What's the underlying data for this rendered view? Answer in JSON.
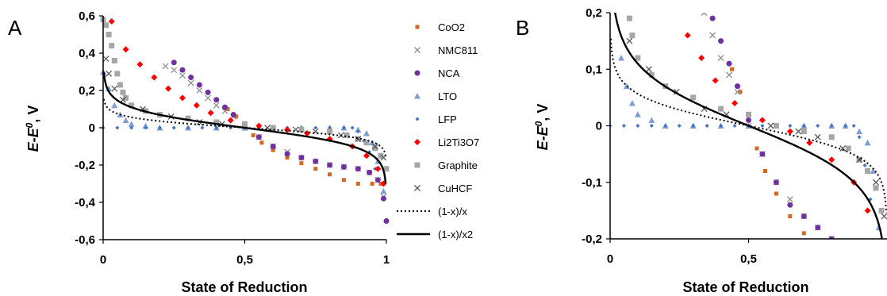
{
  "chart_data": [
    {
      "panel": "A",
      "type": "scatter",
      "xlabel": "State of Reduction",
      "ylabel": "E-E0, V",
      "xlim": [
        0,
        1
      ],
      "ylim": [
        -0.6,
        0.6
      ],
      "x_ticks": [
        "0",
        "0,5",
        "1"
      ],
      "y_ticks": [
        "0,6",
        "0,4",
        "0,2",
        "0",
        "-0,2",
        "-0,4",
        "-0,6"
      ],
      "grid": false,
      "legend_position": "right",
      "series": [
        {
          "name": "CoO2",
          "color": "#D2691E",
          "marker": "square-small",
          "x": [
            0.44,
            0.47,
            0.5,
            0.53,
            0.56,
            0.6,
            0.65,
            0.7,
            0.75,
            0.8,
            0.85,
            0.9,
            0.95,
            0.98
          ],
          "y": [
            0.1,
            0.06,
            0.01,
            -0.04,
            -0.08,
            -0.12,
            -0.16,
            -0.19,
            -0.22,
            -0.25,
            -0.28,
            -0.3,
            -0.3,
            -0.3
          ]
        },
        {
          "name": "NMC811",
          "color": "#909090",
          "marker": "x",
          "x": [
            0.22,
            0.25,
            0.28,
            0.31,
            0.34,
            0.37,
            0.4,
            0.43,
            0.46,
            0.5,
            0.55,
            0.6,
            0.65,
            0.7,
            0.75,
            0.8,
            0.85,
            0.9,
            0.94,
            0.97,
            0.99
          ],
          "y": [
            0.33,
            0.31,
            0.28,
            0.24,
            0.2,
            0.16,
            0.12,
            0.09,
            0.06,
            0.0,
            -0.05,
            -0.1,
            -0.13,
            -0.16,
            -0.18,
            -0.2,
            -0.21,
            -0.22,
            -0.24,
            -0.28,
            -0.37
          ]
        },
        {
          "name": "NCA",
          "color": "#7030A0",
          "marker": "circle",
          "x": [
            0.25,
            0.28,
            0.31,
            0.34,
            0.37,
            0.4,
            0.43,
            0.46,
            0.5,
            0.55,
            0.6,
            0.65,
            0.7,
            0.75,
            0.8,
            0.85,
            0.9,
            0.94,
            0.97,
            0.99,
            1.0
          ],
          "y": [
            0.35,
            0.31,
            0.27,
            0.23,
            0.19,
            0.15,
            0.11,
            0.07,
            0.01,
            -0.05,
            -0.1,
            -0.14,
            -0.16,
            -0.18,
            -0.2,
            -0.21,
            -0.22,
            -0.24,
            -0.28,
            -0.38,
            -0.5
          ]
        },
        {
          "name": "LTO",
          "color": "#7F9FD0",
          "marker": "triangle",
          "x": [
            0,
            0.02,
            0.04,
            0.06,
            0.08,
            0.1,
            0.15,
            0.2,
            0.3,
            0.4,
            0.5,
            0.6,
            0.7,
            0.8,
            0.85,
            0.9,
            0.93,
            0.95,
            0.97,
            0.99
          ],
          "y": [
            0.3,
            0.21,
            0.12,
            0.07,
            0.04,
            0.02,
            0.01,
            0.0,
            0.0,
            0.0,
            0.0,
            0.0,
            0.0,
            0.0,
            0.0,
            -0.01,
            -0.03,
            -0.08,
            -0.18,
            -0.34
          ]
        },
        {
          "name": "LFP",
          "color": "#4472C4",
          "marker": "diamond-small",
          "x": [
            0,
            0.05,
            0.1,
            0.15,
            0.2,
            0.25,
            0.3,
            0.35,
            0.4,
            0.45,
            0.5,
            0.55,
            0.6,
            0.65,
            0.7,
            0.75,
            0.8,
            0.85,
            0.88,
            0.9,
            0.92,
            0.94,
            0.96
          ],
          "y": [
            0,
            0,
            0,
            0,
            0,
            0,
            0,
            0,
            0,
            0,
            0,
            0,
            0,
            0,
            0,
            0,
            0,
            0,
            0,
            -0.02,
            -0.07,
            -0.13,
            -0.22
          ]
        },
        {
          "name": "Li2Ti3O7",
          "color": "#FF0000",
          "marker": "diamond",
          "x": [
            0.03,
            0.08,
            0.13,
            0.18,
            0.23,
            0.28,
            0.33,
            0.38,
            0.45,
            0.55,
            0.65,
            0.72,
            0.8,
            0.88,
            0.93,
            0.97,
            0.99
          ],
          "y": [
            0.57,
            0.42,
            0.34,
            0.27,
            0.21,
            0.16,
            0.12,
            0.08,
            0.04,
            0.01,
            -0.01,
            -0.03,
            -0.06,
            -0.1,
            -0.15,
            -0.22,
            -0.3
          ]
        },
        {
          "name": "Graphite",
          "color": "#A6A6A6",
          "marker": "square",
          "x": [
            0,
            0.01,
            0.02,
            0.03,
            0.04,
            0.05,
            0.06,
            0.07,
            0.08,
            0.1,
            0.15,
            0.2,
            0.3,
            0.4,
            0.5,
            0.6,
            0.7,
            0.8,
            0.86,
            0.9,
            0.93,
            0.96,
            0.98,
            1.0
          ],
          "y": [
            0.58,
            0.55,
            0.5,
            0.44,
            0.36,
            0.29,
            0.23,
            0.19,
            0.16,
            0.12,
            0.09,
            0.07,
            0.05,
            0.03,
            0.02,
            0.0,
            -0.01,
            -0.02,
            -0.04,
            -0.06,
            -0.08,
            -0.11,
            -0.15,
            -0.22
          ]
        },
        {
          "name": "CuHCF",
          "color": "#595959",
          "marker": "x",
          "x": [
            0.01,
            0.02,
            0.04,
            0.07,
            0.14,
            0.24,
            0.34,
            0.42,
            0.58,
            0.68,
            0.75,
            0.84,
            0.9,
            0.96,
            0.99
          ],
          "y": [
            0.37,
            0.29,
            0.21,
            0.15,
            0.1,
            0.06,
            0.03,
            0.02,
            0.0,
            -0.01,
            -0.02,
            -0.04,
            -0.06,
            -0.1,
            -0.16
          ]
        },
        {
          "name": "(1-x)/x",
          "color": "#000000",
          "line": "dotted",
          "fn": "0.0257*ln((1-x)/x)"
        },
        {
          "name": "(1-x)/x2",
          "color": "#000000",
          "line": "solid",
          "fn": "0.05*ln((1-x)/x)"
        }
      ]
    },
    {
      "panel": "B",
      "type": "scatter",
      "xlabel": "State of Reduction",
      "ylabel": "E-E0, V",
      "xlim": [
        0,
        1
      ],
      "ylim": [
        -0.2,
        0.2
      ],
      "x_ticks": [
        "0",
        "0,5"
      ],
      "y_ticks": [
        "0,2",
        "0,1",
        "0",
        "-0,1",
        "-0,2"
      ],
      "grid": false,
      "series_ref": "same series as panel A (zoomed)"
    }
  ]
}
